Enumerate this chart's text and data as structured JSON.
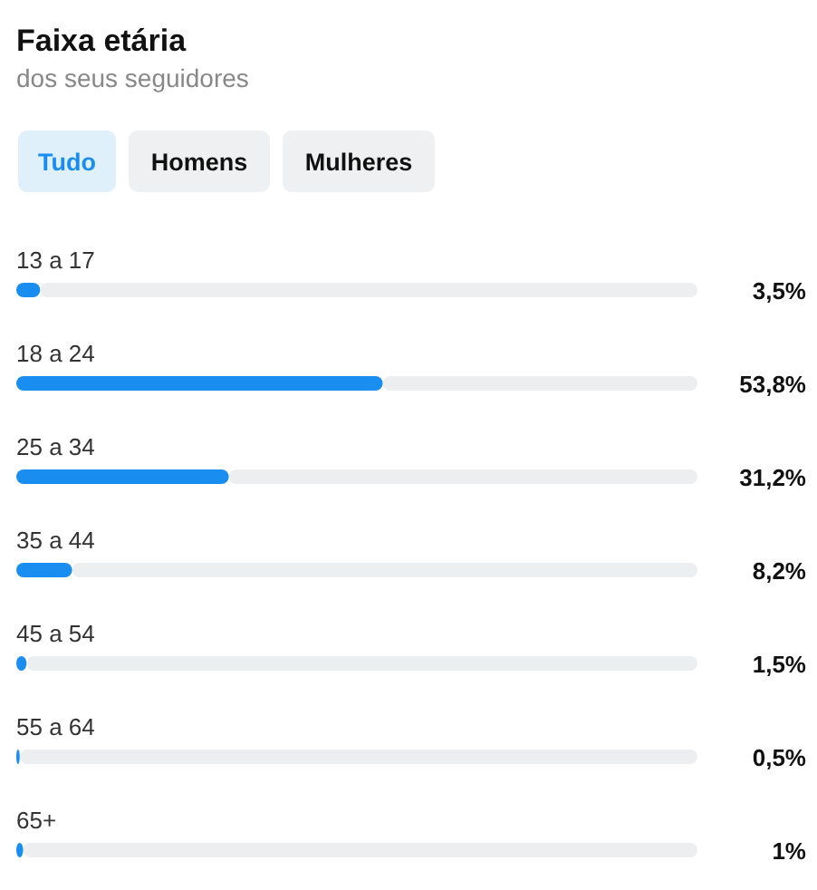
{
  "chart_data": {
    "type": "bar",
    "orientation": "horizontal",
    "title": "Faixa etária",
    "subtitle": "dos seus seguidores",
    "annotations": [
      "Tudo",
      "Homens",
      "Mulheres"
    ],
    "categories": [
      "13 a 17",
      "18 a 24",
      "25 a 34",
      "35 a 44",
      "45 a 54",
      "55 a 64",
      "65+"
    ],
    "values": [
      3.5,
      53.8,
      31.2,
      8.2,
      1.5,
      0.5,
      1
    ],
    "value_labels": [
      "3,5%",
      "53,8%",
      "31,2%",
      "8,2%",
      "1,5%",
      "0,5%",
      "1%"
    ],
    "color": "#1a8ef0",
    "xlim": [
      0,
      100
    ]
  }
}
